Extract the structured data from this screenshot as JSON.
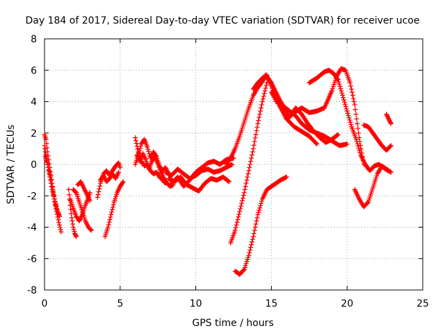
{
  "chart_data": {
    "type": "scatter",
    "title": "Day 184 of 2017, Sidereal Day-to-day VTEC variation (SDTVAR) for receiver ucoe",
    "xlabel": "GPS time / hours",
    "ylabel": "SDTVAR / TECUs",
    "xlim": [
      0,
      25
    ],
    "ylim": [
      -8,
      8
    ],
    "xticks": [
      "0",
      "5",
      "10",
      "15",
      "20",
      "25"
    ],
    "yticks": [
      "-8",
      "-6",
      "-4",
      "-2",
      "0",
      "2",
      "4",
      "6",
      "8"
    ],
    "grid": true,
    "marker": "+",
    "color": "#ff0000",
    "series": [
      {
        "x": [
          0.0,
          0.1,
          0.2,
          0.35,
          0.5,
          0.65,
          0.8,
          0.95,
          1.1
        ],
        "y": [
          1.9,
          1.6,
          0.8,
          -0.2,
          -1.2,
          -2.2,
          -3.0,
          -3.7,
          -4.3
        ]
      },
      {
        "x": [
          0.0,
          0.1,
          0.25,
          0.4,
          0.55,
          0.7,
          0.85,
          1.0
        ],
        "y": [
          1.2,
          0.6,
          -0.2,
          -0.8,
          -1.6,
          -2.4,
          -3.0,
          -3.3
        ]
      },
      {
        "x": [
          0.05,
          0.2,
          0.35,
          0.5,
          0.65,
          0.8,
          0.95
        ],
        "y": [
          0.5,
          0.0,
          -0.8,
          -1.6,
          -2.2,
          -2.8,
          -3.2
        ]
      },
      {
        "x": [
          1.6,
          1.7,
          1.8,
          1.9,
          2.0,
          2.1
        ],
        "y": [
          -1.6,
          -2.6,
          -3.4,
          -4.0,
          -4.4,
          -4.6
        ]
      },
      {
        "x": [
          1.7,
          1.9,
          2.1,
          2.3,
          2.5,
          2.7,
          2.9,
          3.0
        ],
        "y": [
          -2.2,
          -2.8,
          -3.3,
          -3.6,
          -3.2,
          -2.6,
          -2.1,
          -1.8
        ]
      },
      {
        "x": [
          1.9,
          2.1,
          2.3,
          2.5,
          2.7,
          2.9,
          3.1
        ],
        "y": [
          -1.6,
          -1.8,
          -2.4,
          -3.0,
          -3.6,
          -4.0,
          -4.2
        ]
      },
      {
        "x": [
          2.2,
          2.4,
          2.6,
          2.8,
          3.0
        ],
        "y": [
          -1.3,
          -1.1,
          -1.5,
          -1.9,
          -2.3
        ]
      },
      {
        "x": [
          3.5,
          3.7,
          3.9,
          4.1,
          4.3,
          4.5,
          4.7,
          4.9,
          5.0
        ],
        "y": [
          -2.1,
          -1.2,
          -0.6,
          -0.4,
          -0.7,
          -0.4,
          -0.1,
          0.1,
          -0.2
        ]
      },
      {
        "x": [
          3.7,
          3.9,
          4.1,
          4.3,
          4.5,
          4.7,
          4.9
        ],
        "y": [
          -1.0,
          -0.7,
          -1.1,
          -0.9,
          -0.6,
          -0.9,
          -0.5
        ]
      },
      {
        "x": [
          4.0,
          4.2,
          4.4,
          4.6,
          4.8,
          5.0,
          5.2
        ],
        "y": [
          -4.6,
          -4.0,
          -3.2,
          -2.4,
          -1.8,
          -1.4,
          -1.1
        ]
      },
      {
        "x": [
          6.0,
          6.2,
          6.4,
          6.6,
          6.8,
          7.0,
          7.2,
          7.4,
          7.6,
          7.8,
          8.0
        ],
        "y": [
          1.7,
          0.8,
          0.2,
          -0.1,
          0.0,
          -0.4,
          -0.6,
          -0.5,
          -0.8,
          -1.0,
          -1.2
        ]
      },
      {
        "x": [
          6.0,
          6.2,
          6.4,
          6.6,
          6.8,
          7.0,
          7.2,
          7.4,
          7.6,
          7.8,
          8.0,
          8.2
        ],
        "y": [
          0.0,
          0.6,
          1.3,
          1.6,
          1.1,
          0.4,
          0.8,
          0.5,
          -0.1,
          -0.4,
          -0.2,
          -0.6
        ]
      },
      {
        "x": [
          6.1,
          6.3,
          6.5,
          6.7,
          6.9,
          7.1,
          7.3,
          7.5,
          7.7,
          7.9,
          8.1,
          8.3,
          8.5
        ],
        "y": [
          0.6,
          0.2,
          0.7,
          0.3,
          -0.3,
          0.2,
          0.5,
          0.0,
          -0.5,
          -0.9,
          -1.2,
          -1.4,
          -1.3
        ]
      },
      {
        "x": [
          8.0,
          8.4,
          8.8,
          9.2,
          9.6,
          10.0,
          10.4,
          10.8,
          11.2,
          11.6,
          12.0,
          12.4
        ],
        "y": [
          -0.5,
          -0.7,
          -0.3,
          -0.6,
          -0.9,
          -0.7,
          -0.4,
          -0.3,
          -0.5,
          -0.4,
          -0.2,
          0.0
        ]
      },
      {
        "x": [
          8.2,
          8.6,
          9.0,
          9.4,
          9.8,
          10.2,
          10.6,
          11.0,
          11.4,
          11.8,
          12.2
        ],
        "y": [
          -0.9,
          -1.1,
          -0.8,
          -1.3,
          -1.5,
          -1.7,
          -1.2,
          -0.9,
          -1.0,
          -0.8,
          -1.1
        ]
      },
      {
        "x": [
          8.4,
          8.8,
          9.2,
          9.6,
          10.0,
          10.4,
          10.8,
          11.2,
          11.6,
          12.0,
          12.5
        ],
        "y": [
          -1.2,
          -0.8,
          -1.4,
          -1.0,
          -0.5,
          -0.2,
          0.1,
          0.2,
          0.0,
          0.3,
          0.4
        ]
      },
      {
        "x": [
          12.0,
          12.3,
          12.6,
          12.9,
          13.2,
          13.5,
          13.8,
          14.1,
          14.4,
          14.7,
          15.0,
          15.3
        ],
        "y": [
          0.0,
          0.4,
          1.0,
          1.8,
          2.7,
          3.6,
          4.4,
          4.9,
          5.3,
          5.7,
          5.0,
          4.0
        ]
      },
      {
        "x": [
          12.3,
          12.6,
          12.9,
          13.2,
          13.5,
          13.8,
          14.1,
          14.4,
          14.7
        ],
        "y": [
          -5.0,
          -4.2,
          -3.0,
          -1.8,
          -0.4,
          1.0,
          2.6,
          4.0,
          5.2
        ]
      },
      {
        "x": [
          12.6,
          12.9,
          13.2,
          13.5,
          13.8,
          14.1,
          14.4,
          14.7,
          15.0,
          15.3,
          15.6,
          16.0
        ],
        "y": [
          -6.8,
          -7.0,
          -6.7,
          -5.8,
          -4.6,
          -3.2,
          -2.2,
          -1.6,
          -1.4,
          -1.2,
          -1.0,
          -0.8
        ]
      },
      {
        "x": [
          13.8,
          14.1,
          14.4,
          14.7,
          15.0,
          15.4,
          15.8,
          16.2,
          16.6,
          17.0,
          17.5,
          18.0,
          18.5,
          19.0,
          19.5,
          20.0
        ],
        "y": [
          4.8,
          5.2,
          5.5,
          5.6,
          5.1,
          4.3,
          3.7,
          3.4,
          3.1,
          2.6,
          2.2,
          2.0,
          1.8,
          1.5,
          1.2,
          1.3
        ]
      },
      {
        "x": [
          14.2,
          14.6,
          15.0,
          15.4,
          15.8,
          16.2,
          16.6,
          17.0,
          17.4,
          17.8,
          18.2,
          18.6,
          19.0,
          19.4
        ],
        "y": [
          5.0,
          5.7,
          5.2,
          4.4,
          3.6,
          3.0,
          3.6,
          3.2,
          2.6,
          2.1,
          1.7,
          1.4,
          1.6,
          1.9
        ]
      },
      {
        "x": [
          15.0,
          15.5,
          16.0,
          16.5,
          17.0,
          17.5,
          18.0
        ],
        "y": [
          4.6,
          3.8,
          2.9,
          2.4,
          2.1,
          1.8,
          1.3
        ]
      },
      {
        "x": [
          16.0,
          16.5,
          17.0,
          17.5,
          18.0,
          18.5,
          19.0,
          19.3,
          19.6,
          19.9,
          20.2,
          20.5,
          20.8,
          21.1
        ],
        "y": [
          2.9,
          3.3,
          3.6,
          3.3,
          3.4,
          3.6,
          4.7,
          5.6,
          6.1,
          6.0,
          5.2,
          3.8,
          1.7,
          0.0
        ]
      },
      {
        "x": [
          17.5,
          18.0,
          18.5,
          18.8,
          19.1,
          19.4,
          19.7,
          20.0,
          20.3,
          20.6,
          20.9,
          21.2,
          21.5,
          21.8,
          22.1,
          22.4,
          22.7
        ],
        "y": [
          5.2,
          5.5,
          5.9,
          6.0,
          5.8,
          5.4,
          4.4,
          3.4,
          2.4,
          1.6,
          0.6,
          0.0,
          -0.4,
          -0.1,
          0.0,
          -0.2,
          -0.4
        ]
      },
      {
        "x": [
          20.5,
          20.8,
          21.1,
          21.4,
          21.7,
          22.0,
          22.3,
          22.6,
          22.9
        ],
        "y": [
          -1.6,
          -2.2,
          -2.7,
          -2.4,
          -1.5,
          -0.6,
          -0.1,
          -0.3,
          -0.5
        ]
      },
      {
        "x": [
          21.1,
          21.4,
          21.7,
          22.0,
          22.3,
          22.6,
          22.9
        ],
        "y": [
          2.5,
          2.4,
          2.0,
          1.6,
          1.2,
          0.9,
          1.2
        ]
      },
      {
        "x": [
          22.6,
          22.7,
          22.8,
          22.9
        ],
        "y": [
          3.2,
          3.0,
          2.8,
          2.6
        ]
      }
    ]
  }
}
